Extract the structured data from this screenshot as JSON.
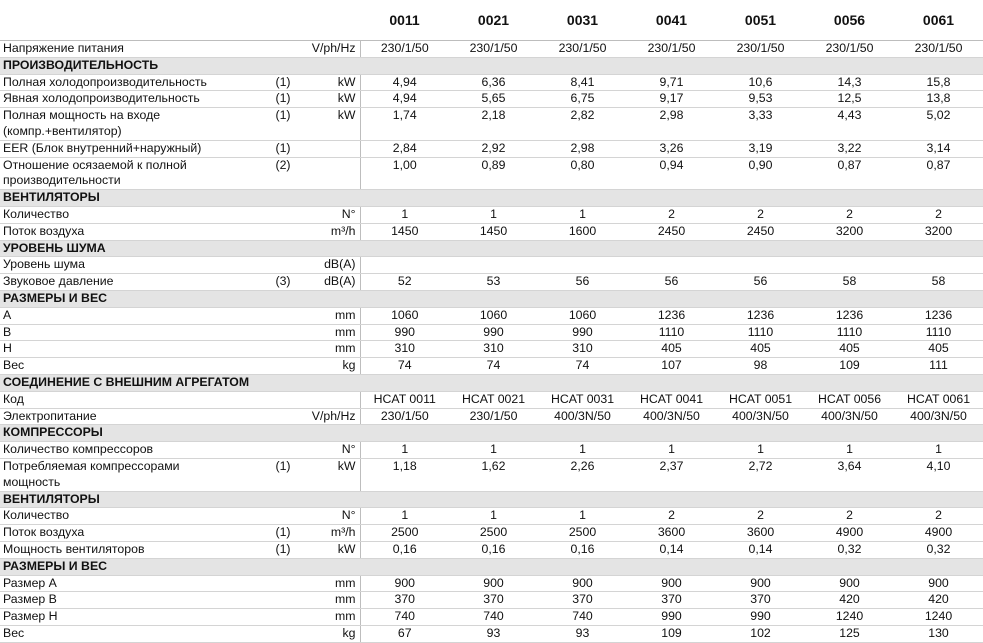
{
  "table": {
    "columns": [
      "0011",
      "0021",
      "0031",
      "0041",
      "0051",
      "0056",
      "0061"
    ],
    "rows": [
      {
        "label": [
          "Напряжение питания"
        ],
        "unit": "V/ph/Hz",
        "values": [
          "230/1/50",
          "230/1/50",
          "230/1/50",
          "230/1/50",
          "230/1/50",
          "230/1/50",
          "230/1/50"
        ]
      },
      {
        "section": "ПРОИЗВОДИТЕЛЬНОСТЬ"
      },
      {
        "label": [
          "Полная холодопроизводительность"
        ],
        "note": "(1)",
        "unit": "kW",
        "values": [
          "4,94",
          "6,36",
          "8,41",
          "9,71",
          "10,6",
          "14,3",
          "15,8"
        ]
      },
      {
        "label": [
          "Явная холодопроизводительность"
        ],
        "note": "(1)",
        "unit": "kW",
        "values": [
          "4,94",
          "5,65",
          "6,75",
          "9,17",
          "9,53",
          "12,5",
          "13,8"
        ]
      },
      {
        "label": [
          "Полная мощность на входе",
          "(компр.+вентилятор)"
        ],
        "note": "(1)",
        "unit": "kW",
        "values": [
          "1,74",
          "2,18",
          "2,82",
          "2,98",
          "3,33",
          "4,43",
          "5,02"
        ]
      },
      {
        "label": [
          "EER (Блок внутренний+наружный)"
        ],
        "note": "(1)",
        "values": [
          "2,84",
          "2,92",
          "2,98",
          "3,26",
          "3,19",
          "3,22",
          "3,14"
        ]
      },
      {
        "label": [
          "Отношение осязаемой к полной",
          "производительности"
        ],
        "note": "(2)",
        "values": [
          "1,00",
          "0,89",
          "0,80",
          "0,94",
          "0,90",
          "0,87",
          "0,87"
        ]
      },
      {
        "section": "ВЕНТИЛЯТОРЫ"
      },
      {
        "label": [
          "Количество"
        ],
        "unit": "N°",
        "values": [
          "1",
          "1",
          "1",
          "2",
          "2",
          "2",
          "2"
        ]
      },
      {
        "label": [
          "Поток воздуха"
        ],
        "unit": "m³/h",
        "values": [
          "1450",
          "1450",
          "1600",
          "2450",
          "2450",
          "3200",
          "3200"
        ]
      },
      {
        "section": "УРОВЕНЬ ШУМА"
      },
      {
        "label": [
          "Уровень шума"
        ],
        "unit": "dB(A)"
      },
      {
        "label": [
          "Звуковое давление"
        ],
        "note": "(3)",
        "unit": "dB(A)",
        "values": [
          "52",
          "53",
          "56",
          "56",
          "56",
          "58",
          "58"
        ]
      },
      {
        "section": "РАЗМЕРЫ И ВЕС"
      },
      {
        "label": [
          "A"
        ],
        "unit": "mm",
        "values": [
          "1060",
          "1060",
          "1060",
          "1236",
          "1236",
          "1236",
          "1236"
        ]
      },
      {
        "label": [
          "B"
        ],
        "unit": "mm",
        "values": [
          "990",
          "990",
          "990",
          "1110",
          "1110",
          "1110",
          "1110"
        ]
      },
      {
        "label": [
          "H"
        ],
        "unit": "mm",
        "values": [
          "310",
          "310",
          "310",
          "405",
          "405",
          "405",
          "405"
        ]
      },
      {
        "label": [
          "Вес"
        ],
        "unit": "kg",
        "values": [
          "74",
          "74",
          "74",
          "107",
          "98",
          "109",
          "111"
        ]
      },
      {
        "section": "СОЕДИНЕНИЕ С ВНЕШНИМ АГРЕГАТОМ"
      },
      {
        "label": [
          "Код"
        ],
        "values": [
          "HCAT 0011",
          "HCAT 0021",
          "HCAT 0031",
          "HCAT 0041",
          "HCAT 0051",
          "HCAT 0056",
          "HCAT 0061"
        ]
      },
      {
        "label": [
          "Электропитание"
        ],
        "unit": "V/ph/Hz",
        "values": [
          "230/1/50",
          "230/1/50",
          "400/3N/50",
          "400/3N/50",
          "400/3N/50",
          "400/3N/50",
          "400/3N/50"
        ]
      },
      {
        "section": "КОМПРЕССОРЫ"
      },
      {
        "label": [
          "Количество компрессоров"
        ],
        "unit": "N°",
        "values": [
          "1",
          "1",
          "1",
          "1",
          "1",
          "1",
          "1"
        ]
      },
      {
        "label": [
          "Потребляемая компрессорами",
          "мощность"
        ],
        "note": "(1)",
        "unit": "kW",
        "values": [
          "1,18",
          "1,62",
          "2,26",
          "2,37",
          "2,72",
          "3,64",
          "4,10"
        ]
      },
      {
        "section": "ВЕНТИЛЯТОРЫ"
      },
      {
        "label": [
          "Количество"
        ],
        "unit": "N°",
        "values": [
          "1",
          "1",
          "1",
          "2",
          "2",
          "2",
          "2"
        ]
      },
      {
        "label": [
          "Поток воздуха"
        ],
        "note": "(1)",
        "unit": "m³/h",
        "values": [
          "2500",
          "2500",
          "2500",
          "3600",
          "3600",
          "4900",
          "4900"
        ]
      },
      {
        "label": [
          "Мощность вентиляторов"
        ],
        "note": "(1)",
        "unit": "kW",
        "values": [
          "0,16",
          "0,16",
          "0,16",
          "0,14",
          "0,14",
          "0,32",
          "0,32"
        ]
      },
      {
        "section": "РАЗМЕРЫ И ВЕС"
      },
      {
        "label": [
          "Размер A"
        ],
        "unit": "mm",
        "values": [
          "900",
          "900",
          "900",
          "900",
          "900",
          "900",
          "900"
        ]
      },
      {
        "label": [
          "Размер B"
        ],
        "unit": "mm",
        "values": [
          "370",
          "370",
          "370",
          "370",
          "370",
          "420",
          "420"
        ]
      },
      {
        "label": [
          "Размер H"
        ],
        "unit": "mm",
        "values": [
          "740",
          "740",
          "740",
          "990",
          "990",
          "1240",
          "1240"
        ]
      },
      {
        "label": [
          "Вес"
        ],
        "unit": "kg",
        "values": [
          "67",
          "93",
          "93",
          "109",
          "102",
          "125",
          "130"
        ]
      }
    ]
  }
}
